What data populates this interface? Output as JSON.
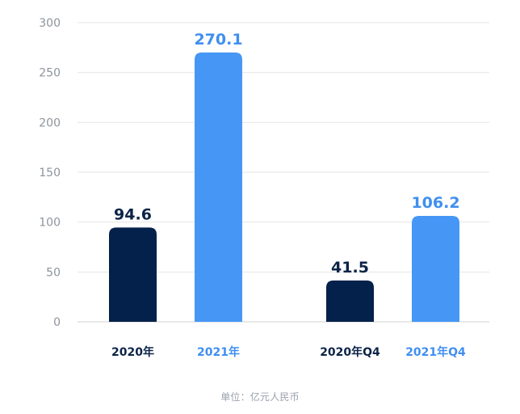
{
  "chart_data": {
    "type": "bar",
    "categories": [
      "2020年",
      "2021年",
      "2020年Q4",
      "2021年Q4"
    ],
    "values": [
      94.6,
      270.1,
      41.5,
      106.2
    ],
    "value_labels": [
      "94.6",
      "270.1",
      "41.5",
      "106.2"
    ],
    "yticks": [
      0,
      50,
      100,
      150,
      200,
      250,
      300
    ],
    "ylim": [
      0,
      300
    ],
    "grid": true,
    "colors": {
      "dark_bar": "#03214a",
      "light_bar": "#4697f5",
      "dark_text": "#0c2447",
      "light_text": "#3f8ff0",
      "axis_text": "#8e949c",
      "grid": "#e6e6e6"
    }
  },
  "unit_label": "单位：亿元人民币"
}
